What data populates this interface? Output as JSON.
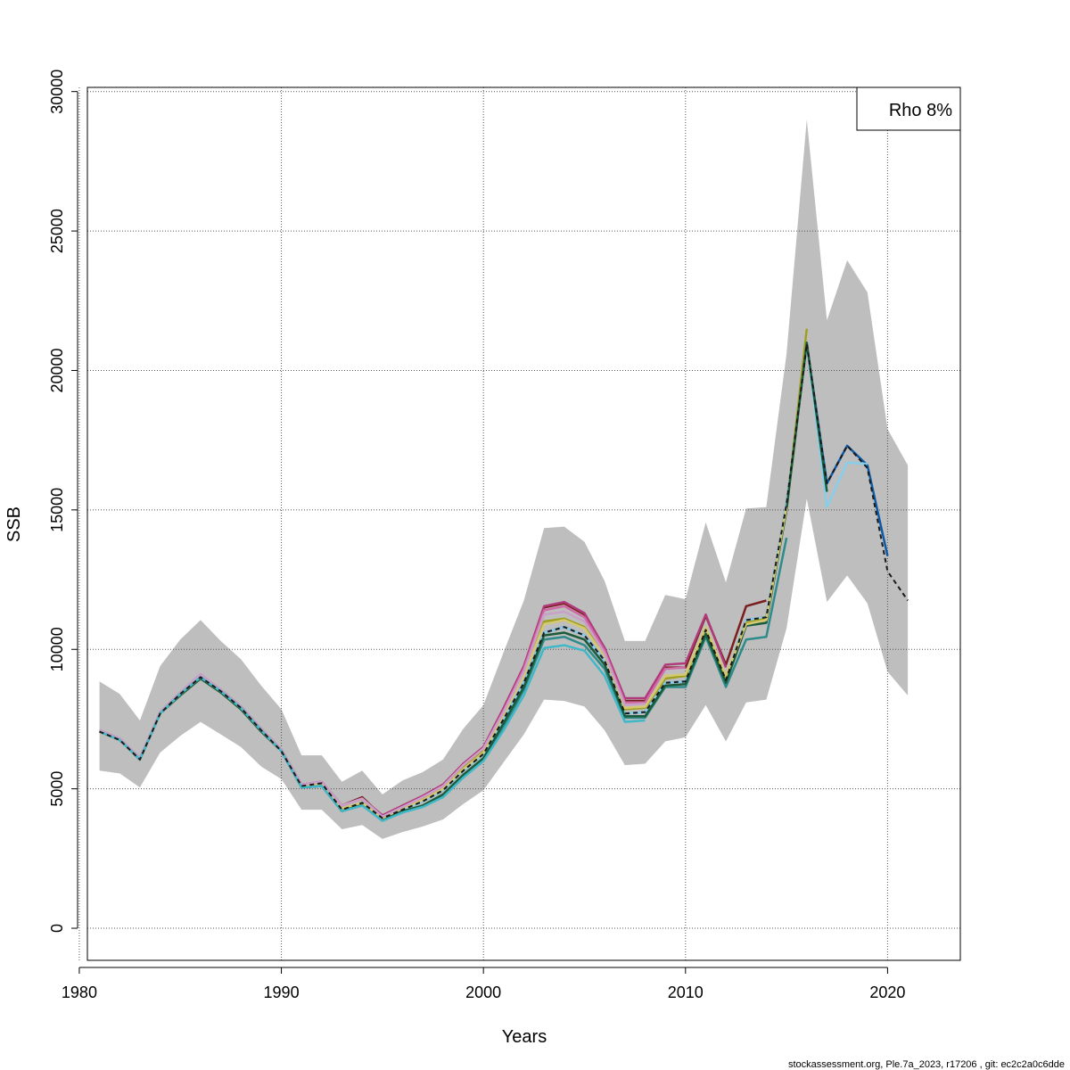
{
  "footer": "stockassessment.org, Ple.7a_2023, r17206 , git: ec2c2a0c6dde",
  "chart_data": {
    "type": "line",
    "title": "",
    "xlabel": "Years",
    "ylabel": "SSB",
    "xlim": [
      1980.4,
      2023.6
    ],
    "ylim": [
      -1150,
      30150
    ],
    "xticks": [
      1980,
      1990,
      2000,
      2010,
      2020
    ],
    "yticks": [
      0,
      5000,
      10000,
      15000,
      20000,
      25000,
      30000
    ],
    "grid": true,
    "legend": {
      "text": "Rho 8%",
      "placement": "top-right"
    },
    "x": [
      1981,
      1982,
      1983,
      1984,
      1985,
      1986,
      1987,
      1988,
      1989,
      1990,
      1991,
      1992,
      1993,
      1994,
      1995,
      1996,
      1997,
      1998,
      1999,
      2000,
      2001,
      2002,
      2003,
      2004,
      2005,
      2006,
      2007,
      2008,
      2009,
      2010,
      2011,
      2012,
      2013,
      2014,
      2015,
      2016,
      2017,
      2018,
      2019,
      2020,
      2021
    ],
    "confidence_band": {
      "color": "#bebebe",
      "upper": [
        8850,
        8400,
        7450,
        9400,
        10350,
        11050,
        10300,
        9650,
        8700,
        7850,
        6200,
        6200,
        5250,
        5650,
        4800,
        5300,
        5600,
        6050,
        7150,
        8000,
        9900,
        11750,
        14350,
        14400,
        13850,
        12450,
        10300,
        10300,
        11950,
        11800,
        14550,
        12400,
        15050,
        15100,
        20600,
        29000,
        21800,
        23950,
        22800,
        17900,
        16600
      ],
      "lower": [
        5650,
        5550,
        5050,
        6300,
        6900,
        7400,
        6950,
        6500,
        5800,
        5350,
        4250,
        4250,
        3550,
        3700,
        3200,
        3450,
        3650,
        3900,
        4450,
        4950,
        5950,
        6950,
        8200,
        8150,
        7950,
        7100,
        5850,
        5900,
        6700,
        6850,
        8000,
        6700,
        8100,
        8200,
        10750,
        15400,
        11700,
        12650,
        11650,
        9200,
        8350
      ]
    },
    "series": [
      {
        "color": "#1a1a1a",
        "dashed": true,
        "values": [
          7050,
          6750,
          6050,
          7700,
          8400,
          9000,
          8500,
          7900,
          7100,
          6350,
          5100,
          5200,
          4250,
          4500,
          3950,
          4250,
          4550,
          4950,
          5650,
          6250,
          7500,
          8800,
          10600,
          10800,
          10500,
          9600,
          7700,
          7750,
          8800,
          8850,
          10700,
          8900,
          11050,
          11150,
          15200,
          20950,
          15950,
          17300,
          16500,
          12800,
          11750
        ]
      },
      {
        "color": "#0c5aa6",
        "values": [
          7050,
          6750,
          6050,
          7700,
          8400,
          9000,
          8500,
          7900,
          7100,
          6350,
          5100,
          5200,
          4250,
          4500,
          3950,
          4250,
          4550,
          4950,
          5650,
          6250,
          7500,
          8800,
          10600,
          10800,
          10500,
          9600,
          7700,
          7750,
          8800,
          8850,
          10700,
          8900,
          11050,
          11150,
          15200,
          20950,
          15950,
          17300,
          16600,
          13350,
          null
        ]
      },
      {
        "color": "#87ceeb",
        "values": [
          7050,
          6750,
          6050,
          7700,
          8400,
          9000,
          8500,
          7900,
          7100,
          6350,
          5100,
          5200,
          4250,
          4500,
          3950,
          4250,
          4550,
          4950,
          5650,
          6250,
          7500,
          8800,
          10600,
          10800,
          10500,
          9600,
          7700,
          7750,
          8800,
          8850,
          10700,
          8900,
          11050,
          11150,
          15200,
          20950,
          15100,
          16700,
          16650,
          null,
          null
        ]
      },
      {
        "color": "#7a1d1d",
        "values": [
          7050,
          6750,
          6050,
          7700,
          8400,
          9050,
          8550,
          7950,
          7150,
          6400,
          5150,
          5250,
          4400,
          4700,
          4000,
          4350,
          4700,
          5100,
          5850,
          6450,
          7850,
          9350,
          11500,
          11650,
          11250,
          10050,
          8150,
          8150,
          9350,
          9350,
          11200,
          9450,
          11550,
          11750,
          null,
          null,
          null,
          null,
          null,
          null,
          null
        ]
      },
      {
        "color": "#2e8b8b",
        "values": [
          7050,
          6750,
          6050,
          7700,
          8400,
          9000,
          8500,
          7900,
          7100,
          6350,
          5050,
          5100,
          4200,
          4400,
          3900,
          4150,
          4400,
          4750,
          5450,
          6050,
          7200,
          8550,
          10350,
          10450,
          10150,
          9300,
          7550,
          7550,
          8650,
          8650,
          10450,
          8650,
          10350,
          10450,
          14000,
          null,
          null,
          null,
          null,
          null,
          null
        ]
      },
      {
        "color": "#a0a020",
        "values": [
          7050,
          6750,
          6050,
          7700,
          8400,
          9000,
          8500,
          7900,
          7100,
          6350,
          5100,
          5200,
          4250,
          4500,
          3950,
          4300,
          4650,
          5000,
          5750,
          6350,
          7700,
          9100,
          11000,
          11100,
          10800,
          9800,
          7850,
          7900,
          8950,
          9050,
          10750,
          9000,
          10950,
          11100,
          15000,
          21500,
          null,
          null,
          null,
          null,
          null
        ]
      },
      {
        "color": "#1a5c3a",
        "values": [
          7050,
          6750,
          6050,
          7700,
          8350,
          8950,
          8450,
          7850,
          7050,
          6350,
          5050,
          5100,
          4200,
          4450,
          3900,
          4200,
          4400,
          4800,
          5500,
          6100,
          7350,
          8650,
          10500,
          10600,
          10350,
          9450,
          7600,
          7600,
          8700,
          8750,
          10550,
          8800,
          10850,
          10950,
          15000,
          21000,
          15650,
          null,
          null,
          null,
          null
        ]
      },
      {
        "color": "#d4c870",
        "values": [
          7050,
          6750,
          6050,
          7700,
          8400,
          9000,
          8500,
          7900,
          7100,
          6350,
          5100,
          5200,
          4300,
          4500,
          3950,
          4300,
          4600,
          5000,
          5700,
          6300,
          7650,
          9050,
          10900,
          11050,
          10750,
          9750,
          7900,
          7950,
          9050,
          9100,
          10800,
          9050,
          10900,
          11050,
          15100,
          null,
          null,
          null,
          null,
          null,
          null
        ]
      },
      {
        "color": "#b03a7a",
        "values": [
          7100,
          6800,
          6100,
          7750,
          8450,
          9100,
          8550,
          7950,
          7150,
          6400,
          5150,
          5250,
          4400,
          4650,
          4050,
          4400,
          4750,
          5150,
          5900,
          6500,
          7900,
          9400,
          11550,
          11700,
          11300,
          10050,
          8250,
          8250,
          9450,
          9500,
          11250,
          9350,
          null,
          null,
          null,
          null,
          null,
          null,
          null,
          null,
          null
        ]
      },
      {
        "color": "#d06ba8",
        "values": [
          7100,
          6800,
          6100,
          7750,
          8450,
          9100,
          8550,
          7950,
          7150,
          6400,
          5150,
          5250,
          4400,
          4650,
          4000,
          4350,
          4700,
          5100,
          5850,
          6450,
          7800,
          9300,
          11400,
          11550,
          11150,
          9950,
          8100,
          8100,
          9300,
          9350,
          null,
          null,
          null,
          null,
          null,
          null,
          null,
          null,
          null,
          null,
          null
        ]
      },
      {
        "color": "#c8a0c8",
        "values": [
          7100,
          6800,
          6100,
          7750,
          8450,
          9100,
          8550,
          7950,
          7150,
          6400,
          5150,
          5250,
          4400,
          4650,
          4000,
          4350,
          4700,
          5100,
          5850,
          6450,
          7750,
          9200,
          11250,
          11350,
          11000,
          9850,
          8000,
          8050,
          null,
          null,
          null,
          null,
          null,
          null,
          null,
          null,
          null,
          null,
          null,
          null,
          null
        ]
      },
      {
        "color": "#40b8c8",
        "values": [
          7050,
          6750,
          6050,
          7700,
          8400,
          9000,
          8500,
          7900,
          7100,
          6350,
          5050,
          5100,
          4200,
          4400,
          3850,
          4150,
          4350,
          4700,
          5400,
          6000,
          7100,
          8350,
          10050,
          10150,
          9950,
          9050,
          7400,
          7450,
          null,
          null,
          null,
          null,
          null,
          null,
          null,
          null,
          null,
          null,
          null,
          null,
          null
        ]
      }
    ]
  }
}
